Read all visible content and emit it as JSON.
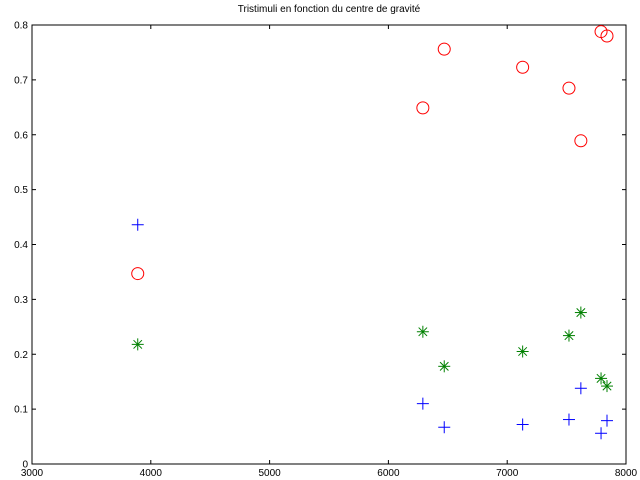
{
  "chart_data": {
    "type": "scatter",
    "title": "Tristimuli en fonction du centre de gravité",
    "xlabel": "",
    "ylabel": "",
    "xlim": [
      3000,
      8000
    ],
    "ylim": [
      0,
      0.8
    ],
    "xticks": [
      3000,
      4000,
      5000,
      6000,
      7000,
      8000
    ],
    "yticks": [
      0,
      0.1,
      0.2,
      0.3,
      0.4,
      0.5,
      0.6,
      0.7,
      0.8
    ],
    "grid": false,
    "legend": "none",
    "series": [
      {
        "marker": "circle",
        "color": "#ff0000",
        "points": [
          [
            3890,
            0.347
          ],
          [
            6290,
            0.649
          ],
          [
            6470,
            0.756
          ],
          [
            7130,
            0.723
          ],
          [
            7520,
            0.685
          ],
          [
            7620,
            0.589
          ],
          [
            7790,
            0.788
          ],
          [
            7840,
            0.78
          ]
        ]
      },
      {
        "marker": "plus",
        "color": "#0000ff",
        "points": [
          [
            3890,
            0.436
          ],
          [
            6290,
            0.11
          ],
          [
            6470,
            0.067
          ],
          [
            7130,
            0.072
          ],
          [
            7520,
            0.081
          ],
          [
            7620,
            0.138
          ],
          [
            7790,
            0.056
          ],
          [
            7840,
            0.079
          ]
        ]
      },
      {
        "marker": "asterisk",
        "color": "#008000",
        "points": [
          [
            3890,
            0.218
          ],
          [
            6290,
            0.241
          ],
          [
            6470,
            0.178
          ],
          [
            7130,
            0.205
          ],
          [
            7520,
            0.234
          ],
          [
            7620,
            0.276
          ],
          [
            7790,
            0.156
          ],
          [
            7840,
            0.142
          ]
        ]
      }
    ]
  }
}
